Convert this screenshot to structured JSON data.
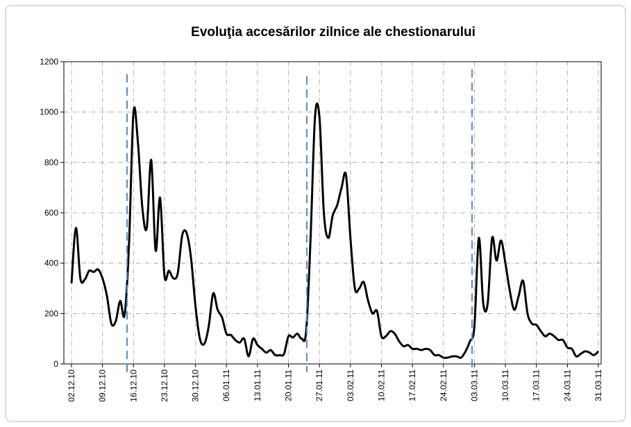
{
  "chart_data": {
    "type": "line",
    "title": "Evoluţia accesărilor zilnice ale chestionarului",
    "categories": [
      "02.12.10",
      null,
      null,
      null,
      null,
      null,
      null,
      "09.12.10",
      null,
      null,
      null,
      null,
      null,
      null,
      "16.12.10",
      null,
      null,
      null,
      null,
      null,
      null,
      "23.12.10",
      null,
      null,
      null,
      null,
      null,
      null,
      "30.12.10",
      null,
      null,
      null,
      null,
      null,
      null,
      "06.01.11",
      null,
      null,
      null,
      null,
      null,
      null,
      "13.01.11",
      null,
      null,
      null,
      null,
      null,
      null,
      "20.01.11",
      null,
      null,
      null,
      null,
      null,
      null,
      "27.01.11",
      null,
      null,
      null,
      null,
      null,
      null,
      "03.02.11",
      null,
      null,
      null,
      null,
      null,
      null,
      "10.02.11",
      null,
      null,
      null,
      null,
      null,
      null,
      "17.02.11",
      null,
      null,
      null,
      null,
      null,
      null,
      "24.02.11",
      null,
      null,
      null,
      null,
      null,
      null,
      "03.03.11",
      null,
      null,
      null,
      null,
      null,
      null,
      "10.03.11",
      null,
      null,
      null,
      null,
      null,
      null,
      "17.03.11",
      null,
      null,
      null,
      null,
      null,
      null,
      "24.03.11",
      null,
      null,
      null,
      null,
      null,
      null,
      "31.03.11"
    ],
    "series": [
      {
        "color": "#000000",
        "values": [
          320,
          540,
          340,
          335,
          370,
          365,
          375,
          340,
          270,
          160,
          170,
          250,
          195,
          480,
          1000,
          880,
          620,
          540,
          810,
          450,
          660,
          350,
          370,
          340,
          360,
          510,
          520,
          420,
          230,
          100,
          80,
          150,
          280,
          215,
          185,
          120,
          115,
          95,
          85,
          100,
          30,
          100,
          75,
          60,
          45,
          55,
          35,
          35,
          40,
          110,
          105,
          120,
          100,
          130,
          500,
          980,
          980,
          600,
          500,
          590,
          630,
          700,
          750,
          500,
          300,
          300,
          325,
          250,
          200,
          210,
          110,
          110,
          130,
          120,
          90,
          70,
          75,
          60,
          60,
          55,
          60,
          55,
          35,
          35,
          25,
          25,
          30,
          30,
          25,
          50,
          90,
          150,
          500,
          240,
          240,
          500,
          410,
          490,
          400,
          290,
          215,
          270,
          330,
          200,
          160,
          155,
          130,
          110,
          120,
          110,
          95,
          95,
          65,
          60,
          30,
          40,
          50,
          45,
          35,
          50
        ]
      }
    ],
    "ylim": [
      0,
      1200
    ],
    "yticks": [
      0,
      200,
      400,
      600,
      800,
      1000,
      1200
    ],
    "grid": true
  }
}
